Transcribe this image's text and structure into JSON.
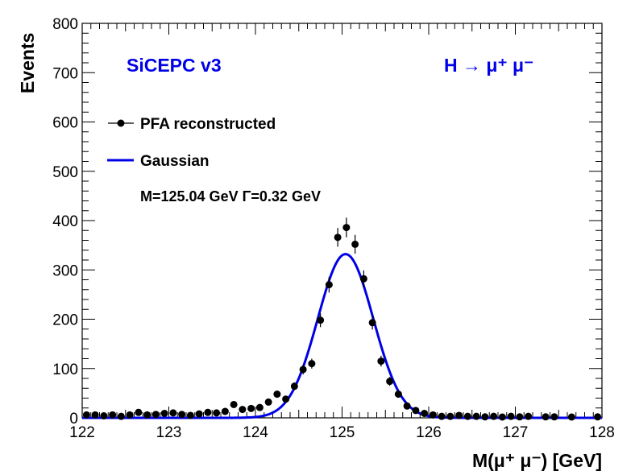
{
  "chart_data": {
    "type": "scatter",
    "title": "SiCEPC v3",
    "annotation_right": "H → μ⁺ μ⁻",
    "fit_text": "M=125.04 GeV  Γ=0.32 GeV",
    "xlabel": "M(μ⁺ μ⁻) [GeV]",
    "ylabel": "Events",
    "xlim": [
      122,
      128
    ],
    "ylim": [
      0,
      800
    ],
    "xticks": [
      "122",
      "123",
      "124",
      "125",
      "126",
      "127",
      "128"
    ],
    "yticks": [
      "0",
      "100",
      "200",
      "300",
      "400",
      "500",
      "600",
      "700",
      "800"
    ],
    "legend": {
      "placement": "top-left",
      "entries": [
        {
          "label": "PFA reconstructed",
          "kind": "marker"
        },
        {
          "label": "Gaussian",
          "kind": "line"
        }
      ]
    },
    "colors": {
      "title": "#0000e6",
      "gaussian": "#0000e6",
      "points": "#000000"
    },
    "series": [
      {
        "name": "PFA reconstructed",
        "x": [
          122.05,
          122.15,
          122.25,
          122.35,
          122.45,
          122.55,
          122.65,
          122.75,
          122.85,
          122.95,
          123.05,
          123.15,
          123.25,
          123.35,
          123.45,
          123.55,
          123.65,
          123.75,
          123.85,
          123.95,
          124.05,
          124.15,
          124.25,
          124.35,
          124.45,
          124.55,
          124.65,
          124.75,
          124.85,
          124.95,
          125.05,
          125.15,
          125.25,
          125.35,
          125.45,
          125.55,
          125.65,
          125.75,
          125.85,
          125.95,
          126.05,
          126.15,
          126.25,
          126.35,
          126.45,
          126.55,
          126.65,
          126.75,
          126.85,
          126.95,
          127.05,
          127.15,
          127.35,
          127.45,
          127.65,
          127.95
        ],
        "y": [
          6,
          6,
          4,
          6,
          3,
          6,
          11,
          6,
          7,
          9,
          10,
          7,
          5,
          8,
          11,
          10,
          13,
          27,
          17,
          19,
          21,
          32,
          48,
          38,
          64,
          98,
          110,
          198,
          270,
          366,
          386,
          352,
          282,
          193,
          115,
          74,
          48,
          24,
          15,
          9,
          6,
          3,
          3,
          5,
          3,
          3,
          2,
          3,
          1,
          3,
          2,
          3,
          2,
          2,
          1,
          2
        ],
        "errors": [
          2,
          2,
          2,
          2,
          2,
          2,
          3,
          2,
          3,
          3,
          3,
          3,
          2,
          3,
          3,
          3,
          4,
          5,
          4,
          4,
          5,
          6,
          7,
          6,
          8,
          10,
          10,
          14,
          16,
          19,
          20,
          19,
          17,
          14,
          11,
          9,
          7,
          5,
          4,
          3,
          2,
          2,
          2,
          2,
          2,
          2,
          1,
          2,
          1,
          2,
          1,
          2,
          1,
          1,
          1,
          1
        ]
      },
      {
        "name": "Gaussian",
        "type": "line",
        "function": "gaussian",
        "mean": 125.04,
        "sigma": 0.32,
        "amplitude": 332
      }
    ],
    "grid": false
  }
}
